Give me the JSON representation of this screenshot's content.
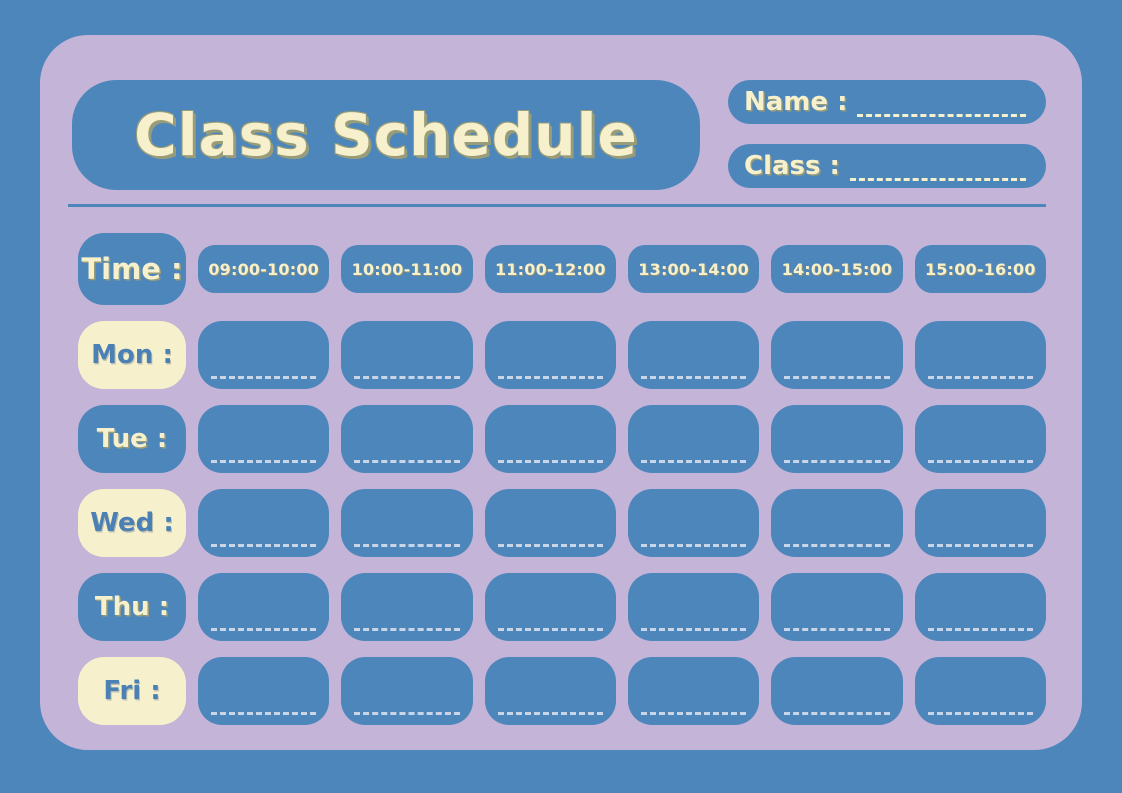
{
  "title": "Class Schedule",
  "fields": [
    {
      "label": "Name :",
      "value": ""
    },
    {
      "label": "Class :",
      "value": ""
    }
  ],
  "schedule": {
    "time_label": "Time :",
    "time_slots": [
      "09:00-10:00",
      "10:00-11:00",
      "11:00-12:00",
      "13:00-14:00",
      "14:00-15:00",
      "15:00-16:00"
    ],
    "days": [
      {
        "label": "Mon :",
        "style": "cream",
        "cells": [
          "",
          "",
          "",
          "",
          "",
          ""
        ]
      },
      {
        "label": "Tue :",
        "style": "blue",
        "cells": [
          "",
          "",
          "",
          "",
          "",
          ""
        ]
      },
      {
        "label": "Wed :",
        "style": "cream",
        "cells": [
          "",
          "",
          "",
          "",
          "",
          ""
        ]
      },
      {
        "label": "Thu :",
        "style": "blue",
        "cells": [
          "",
          "",
          "",
          "",
          "",
          ""
        ]
      },
      {
        "label": "Fri :",
        "style": "cream",
        "cells": [
          "",
          "",
          "",
          "",
          "",
          ""
        ]
      }
    ]
  },
  "colors": {
    "outer_background": "#4D86BB",
    "card_background": "#C4B4D8",
    "pill_blue": "#4D86BB",
    "cream": "#F6F1CC",
    "day_text_blue": "#4B80B5",
    "title_shadow_olive": "#999C79",
    "cell_dash_line": "#CBD5E9"
  }
}
